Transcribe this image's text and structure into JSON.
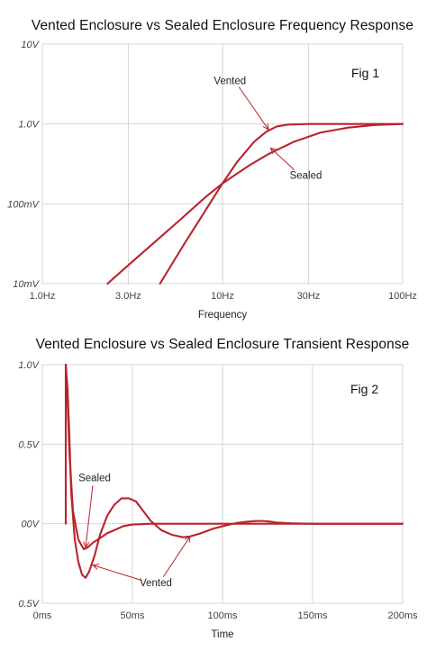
{
  "chart_data": [
    {
      "type": "line",
      "title": "Vented Enclosure vs Sealed Enclosure Frequency Response",
      "figure_label": "Fig 1",
      "xlabel": "Frequency",
      "ylabel": "",
      "xscale": "log",
      "yscale": "log",
      "xlim": [
        1.0,
        100
      ],
      "ylim": [
        0.01,
        10
      ],
      "x_ticks": [
        {
          "value": 1.0,
          "label": "1.0Hz"
        },
        {
          "value": 3.0,
          "label": "3.0Hz"
        },
        {
          "value": 10,
          "label": "10Hz"
        },
        {
          "value": 30,
          "label": "30Hz"
        },
        {
          "value": 100,
          "label": "100Hz"
        }
      ],
      "y_ticks": [
        {
          "value": 0.01,
          "label": "10mV"
        },
        {
          "value": 0.1,
          "label": "100mV"
        },
        {
          "value": 1.0,
          "label": "1.0V"
        },
        {
          "value": 10,
          "label": "10V"
        }
      ],
      "grid": true,
      "series": [
        {
          "name": "Vented",
          "x": [
            4.5,
            6,
            8,
            10,
            12,
            15,
            17.5,
            20,
            23,
            30,
            50,
            100
          ],
          "y": [
            0.01,
            0.029,
            0.081,
            0.18,
            0.33,
            0.6,
            0.8,
            0.93,
            0.98,
            1.0,
            1.0,
            1.0
          ]
        },
        {
          "name": "Sealed",
          "x": [
            2.3,
            3,
            4,
            6,
            8,
            10,
            14,
            18,
            25,
            35,
            50,
            70,
            100
          ],
          "y": [
            0.01,
            0.017,
            0.03,
            0.067,
            0.12,
            0.18,
            0.3,
            0.42,
            0.6,
            0.78,
            0.9,
            0.97,
            1.0
          ]
        }
      ],
      "annotations": [
        {
          "text": "Vented",
          "x": 11,
          "y": 3.5,
          "target_x": 18,
          "target_y": 0.85
        },
        {
          "text": "Sealed",
          "x": 29,
          "y": 0.23,
          "target_x": 18.5,
          "target_y": 0.5
        }
      ]
    },
    {
      "type": "line",
      "title": "Vented Enclosure vs Sealed Enclosure Transient Response",
      "figure_label": "Fig 2",
      "xlabel": "Time",
      "ylabel": "",
      "xlim": [
        0,
        200
      ],
      "ylim": [
        -0.5,
        1.0
      ],
      "x_ticks": [
        {
          "value": 0,
          "label": "0ms"
        },
        {
          "value": 50,
          "label": "50ms"
        },
        {
          "value": 100,
          "label": "100ms"
        },
        {
          "value": 150,
          "label": "150ms"
        },
        {
          "value": 200,
          "label": "200ms"
        }
      ],
      "y_ticks": [
        {
          "value": 1.0,
          "label": "1.0V"
        },
        {
          "value": 0.5,
          "label": "0.5V"
        },
        {
          "value": 0.0,
          "label": "00V"
        },
        {
          "value": -0.5,
          "label": "0.5V"
        }
      ],
      "grid": true,
      "series": [
        {
          "name": "Sealed",
          "x": [
            13,
            13,
            14,
            15,
            17,
            20,
            23,
            25,
            28,
            32,
            36,
            40,
            45,
            50,
            60,
            80,
            120,
            160,
            200
          ],
          "y": [
            0.0,
            1.0,
            0.78,
            0.45,
            0.08,
            -0.1,
            -0.16,
            -0.15,
            -0.12,
            -0.09,
            -0.06,
            -0.04,
            -0.015,
            -0.005,
            0.0,
            0.0,
            0.0,
            0.0,
            0.0
          ]
        },
        {
          "name": "Vented",
          "x": [
            13,
            14,
            15,
            16,
            18,
            20,
            22,
            24,
            26,
            29,
            32,
            36,
            40,
            44,
            48,
            52,
            56,
            60,
            66,
            72,
            78,
            82,
            88,
            95,
            102,
            108,
            113,
            118,
            122,
            126,
            130,
            138,
            150,
            170,
            200
          ],
          "y": [
            1.0,
            0.85,
            0.55,
            0.2,
            -0.1,
            -0.24,
            -0.32,
            -0.34,
            -0.3,
            -0.2,
            -0.07,
            0.05,
            0.12,
            0.16,
            0.16,
            0.14,
            0.08,
            0.02,
            -0.04,
            -0.07,
            -0.085,
            -0.08,
            -0.06,
            -0.03,
            -0.01,
            0.005,
            0.012,
            0.017,
            0.018,
            0.014,
            0.008,
            0.003,
            0.0,
            0.0,
            0.0
          ]
        }
      ],
      "annotations": [
        {
          "text": "Sealed",
          "x": 29,
          "y": 0.29,
          "target_x": 24,
          "target_y": -0.15
        },
        {
          "text": "Vented",
          "x": 63,
          "y": -0.37,
          "target_x": 28,
          "target_y": -0.26
        },
        {
          "text": "",
          "x": 63,
          "y": -0.37,
          "target_x": 82,
          "target_y": -0.08
        }
      ]
    }
  ]
}
